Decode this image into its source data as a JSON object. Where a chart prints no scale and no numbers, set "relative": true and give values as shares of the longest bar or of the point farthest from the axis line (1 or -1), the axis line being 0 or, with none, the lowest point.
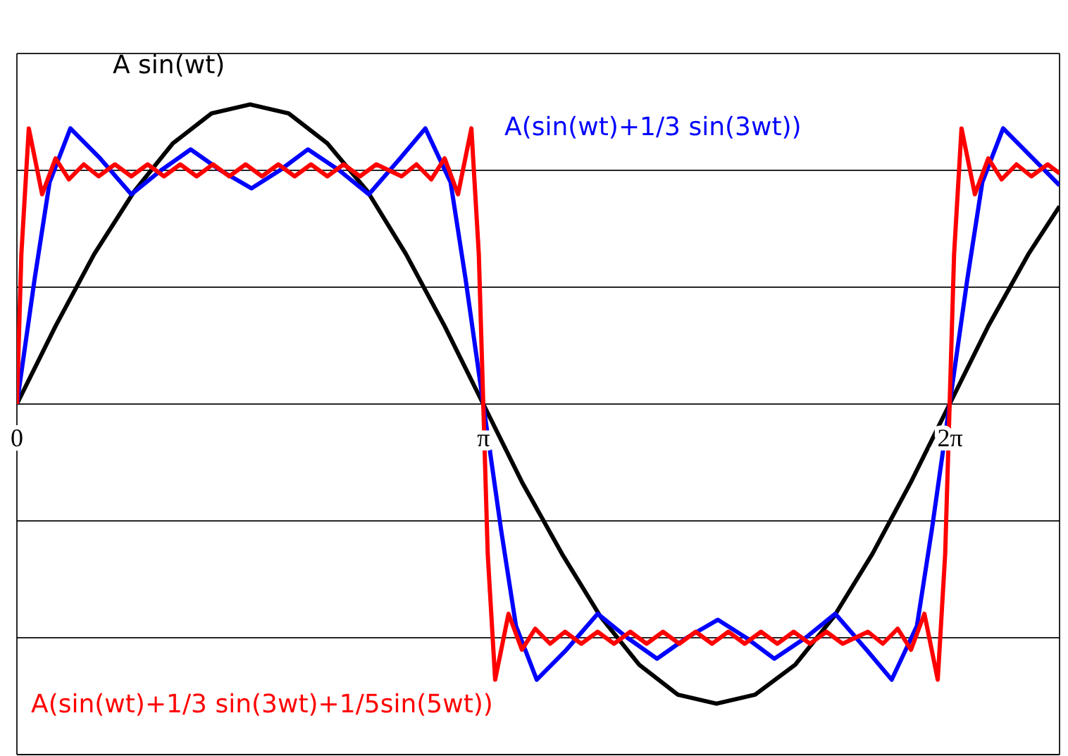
{
  "chart_data": {
    "type": "line",
    "relative": true,
    "grid": "y",
    "legend": false,
    "marker": "none",
    "line_style": "solid",
    "xlim": [
      0,
      7.02
    ],
    "xticks": [
      0,
      {
        "value": 3.1416,
        "label": "π"
      },
      {
        "value": 6.2832,
        "label": "2π"
      }
    ],
    "series": [
      {
        "name": "A sin(wt)",
        "color": "#000000",
        "x": [
          0,
          0.26,
          0.52,
          0.79,
          1.05,
          1.31,
          1.57,
          1.83,
          2.09,
          2.36,
          2.62,
          2.88,
          3.14,
          3.4,
          3.67,
          3.93,
          4.19,
          4.45,
          4.71,
          4.97,
          5.24,
          5.5,
          5.76,
          6.02,
          6.28,
          6.54,
          6.81,
          7.02
        ],
        "values": [
          0,
          0.26,
          0.5,
          0.71,
          0.87,
          0.97,
          1,
          0.97,
          0.87,
          0.71,
          0.5,
          0.26,
          0,
          -0.26,
          -0.5,
          -0.71,
          -0.87,
          -0.97,
          -1,
          -0.97,
          -0.87,
          -0.71,
          -0.5,
          -0.26,
          0,
          0.26,
          0.5,
          0.66
        ]
      },
      {
        "name": "A(sin(wt)+1/3 sin(3wt))",
        "color": "#0000ff",
        "x": [
          0,
          0.12,
          0.22,
          0.36,
          0.56,
          0.77,
          0.97,
          1.17,
          1.37,
          1.58,
          1.77,
          1.96,
          2.17,
          2.37,
          2.58,
          2.75,
          2.92,
          3.02,
          3.14,
          3.26,
          3.36,
          3.5,
          3.7,
          3.91,
          4.11,
          4.31,
          4.51,
          4.72,
          4.91,
          5.1,
          5.31,
          5.51,
          5.72,
          5.89,
          6.06,
          6.16,
          6.28,
          6.4,
          6.5,
          6.64,
          6.84,
          7.02
        ],
        "values": [
          0,
          0.42,
          0.74,
          0.92,
          0.82,
          0.7,
          0.78,
          0.85,
          0.78,
          0.72,
          0.78,
          0.85,
          0.78,
          0.7,
          0.82,
          0.92,
          0.74,
          0.42,
          0,
          -0.42,
          -0.74,
          -0.92,
          -0.82,
          -0.7,
          -0.78,
          -0.85,
          -0.78,
          -0.72,
          -0.78,
          -0.85,
          -0.78,
          -0.7,
          -0.82,
          -0.92,
          -0.74,
          -0.42,
          0,
          0.42,
          0.74,
          0.92,
          0.82,
          0.73
        ]
      },
      {
        "name": "A(sin(wt)+1/3 sin(3wt)+1/5sin(5wt))",
        "color": "#ff0000",
        "x": [
          0,
          0.03,
          0.08,
          0.17,
          0.26,
          0.35,
          0.45,
          0.55,
          0.66,
          0.77,
          0.88,
          0.99,
          1.1,
          1.21,
          1.32,
          1.43,
          1.54,
          1.65,
          1.76,
          1.87,
          1.98,
          2.09,
          2.2,
          2.31,
          2.42,
          2.59,
          2.69,
          2.79,
          2.88,
          2.97,
          3.06,
          3.11,
          3.14,
          3.17,
          3.22,
          3.31,
          3.4,
          3.49,
          3.59,
          3.69,
          3.8,
          3.91,
          4.02,
          4.13,
          4.24,
          4.35,
          4.46,
          4.57,
          4.68,
          4.79,
          4.9,
          5.01,
          5.12,
          5.23,
          5.34,
          5.45,
          5.56,
          5.73,
          5.83,
          5.93,
          6.02,
          6.11,
          6.2,
          6.25,
          6.28,
          6.31,
          6.36,
          6.45,
          6.54,
          6.63,
          6.73,
          6.83,
          6.94,
          7.02
        ],
        "values": [
          0,
          0.5,
          0.92,
          0.7,
          0.82,
          0.75,
          0.8,
          0.76,
          0.8,
          0.76,
          0.8,
          0.76,
          0.8,
          0.76,
          0.8,
          0.76,
          0.8,
          0.76,
          0.8,
          0.76,
          0.8,
          0.76,
          0.8,
          0.76,
          0.8,
          0.76,
          0.8,
          0.75,
          0.82,
          0.7,
          0.92,
          0.5,
          0,
          -0.5,
          -0.92,
          -0.7,
          -0.82,
          -0.75,
          -0.8,
          -0.76,
          -0.8,
          -0.76,
          -0.8,
          -0.76,
          -0.8,
          -0.76,
          -0.8,
          -0.76,
          -0.8,
          -0.76,
          -0.8,
          -0.76,
          -0.8,
          -0.76,
          -0.8,
          -0.76,
          -0.8,
          -0.76,
          -0.8,
          -0.75,
          -0.82,
          -0.7,
          -0.92,
          -0.5,
          0,
          0.5,
          0.92,
          0.7,
          0.82,
          0.75,
          0.8,
          0.76,
          0.8,
          0.77
        ]
      }
    ]
  }
}
